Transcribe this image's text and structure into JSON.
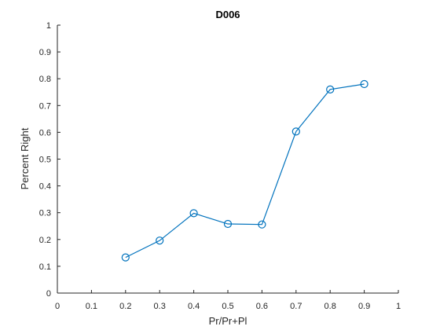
{
  "chart_data": {
    "type": "line",
    "title": "D006",
    "xlabel": "Pr/Pr+Pl",
    "ylabel": "Percent Right",
    "xlim": [
      0,
      1
    ],
    "ylim": [
      0,
      1
    ],
    "xticks": [
      "0",
      "0.1",
      "0.2",
      "0.3",
      "0.4",
      "0.5",
      "0.6",
      "0.7",
      "0.8",
      "0.9",
      "1"
    ],
    "yticks": [
      "0",
      "0.1",
      "0.2",
      "0.3",
      "0.4",
      "0.5",
      "0.6",
      "0.7",
      "0.8",
      "0.9",
      "1"
    ],
    "grid": false,
    "series": [
      {
        "x": [
          0.2,
          0.3,
          0.4,
          0.5,
          0.6,
          0.7,
          0.8,
          0.9
        ],
        "y": [
          0.133,
          0.196,
          0.298,
          0.258,
          0.256,
          0.603,
          0.76,
          0.78
        ],
        "color": "#0072BD",
        "marker": "circle"
      }
    ]
  }
}
